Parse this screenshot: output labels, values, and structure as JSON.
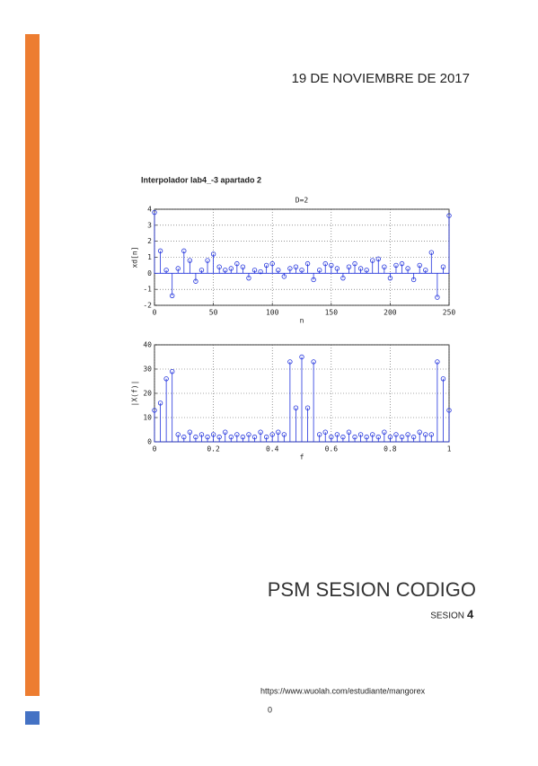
{
  "header": {
    "date": "19 DE NOVIEMBRE DE 2017"
  },
  "figure": {
    "title": "Interpolador lab4_-3 apartado 2",
    "charts": [
      {
        "type": "stem",
        "title": "D=2",
        "xlabel": "n",
        "ylabel": "xd[n]",
        "color": "#2233dd",
        "grid": true,
        "xlim": [
          0,
          250
        ],
        "xticks": [
          0,
          50,
          100,
          150,
          200,
          250
        ],
        "ylim": [
          -2,
          4
        ],
        "yticks": [
          -2,
          -1,
          0,
          1,
          2,
          3,
          4
        ],
        "x": [
          0,
          5,
          10,
          15,
          20,
          25,
          30,
          35,
          40,
          45,
          50,
          55,
          60,
          65,
          70,
          75,
          80,
          85,
          90,
          95,
          100,
          105,
          110,
          115,
          120,
          125,
          130,
          135,
          140,
          145,
          150,
          155,
          160,
          165,
          170,
          175,
          180,
          185,
          190,
          195,
          200,
          205,
          210,
          215,
          220,
          225,
          230,
          235,
          240,
          245,
          250
        ],
        "values": [
          3.8,
          1.4,
          0.2,
          -1.4,
          0.3,
          1.4,
          0.8,
          -0.5,
          0.2,
          0.8,
          1.2,
          0.4,
          0.2,
          0.3,
          0.6,
          0.4,
          -0.3,
          0.2,
          0.1,
          0.5,
          0.6,
          0.2,
          -0.2,
          0.3,
          0.4,
          0.2,
          0.6,
          -0.4,
          0.2,
          0.6,
          0.5,
          0.3,
          -0.3,
          0.4,
          0.6,
          0.3,
          0.2,
          0.8,
          0.9,
          0.4,
          -0.3,
          0.5,
          0.6,
          0.3,
          -0.4,
          0.5,
          0.2,
          1.3,
          -1.5,
          0.4,
          3.6
        ]
      },
      {
        "type": "stem",
        "xlabel": "f",
        "ylabel": "|X(f)|",
        "color": "#2233dd",
        "grid": true,
        "xlim": [
          0,
          1
        ],
        "xticks": [
          0,
          0.2,
          0.4,
          0.6,
          0.8,
          1
        ],
        "ylim": [
          0,
          40
        ],
        "yticks": [
          0,
          10,
          20,
          30,
          40
        ],
        "x": [
          0,
          0.02,
          0.04,
          0.06,
          0.08,
          0.1,
          0.12,
          0.14,
          0.16,
          0.18,
          0.2,
          0.22,
          0.24,
          0.26,
          0.28,
          0.3,
          0.32,
          0.34,
          0.36,
          0.38,
          0.4,
          0.42,
          0.44,
          0.46,
          0.48,
          0.5,
          0.52,
          0.54,
          0.56,
          0.58,
          0.6,
          0.62,
          0.64,
          0.66,
          0.68,
          0.7,
          0.72,
          0.74,
          0.76,
          0.78,
          0.8,
          0.82,
          0.84,
          0.86,
          0.88,
          0.9,
          0.92,
          0.94,
          0.96,
          0.98,
          1
        ],
        "values": [
          13,
          16,
          26,
          29,
          3,
          2,
          4,
          2,
          3,
          2,
          3,
          2,
          4,
          2,
          3,
          2,
          3,
          2,
          4,
          2,
          3,
          4,
          3,
          33,
          14,
          35,
          14,
          33,
          3,
          4,
          2,
          3,
          2,
          4,
          2,
          3,
          2,
          3,
          2,
          4,
          2,
          3,
          2,
          3,
          2,
          4,
          3,
          3,
          33,
          26,
          13
        ]
      }
    ]
  },
  "footer": {
    "title": "PSM SESION CODIGO",
    "subtitle": "SESION",
    "number": "4",
    "url": "https://www.wuolah.com/estudiante/mangorex",
    "page": "0"
  }
}
